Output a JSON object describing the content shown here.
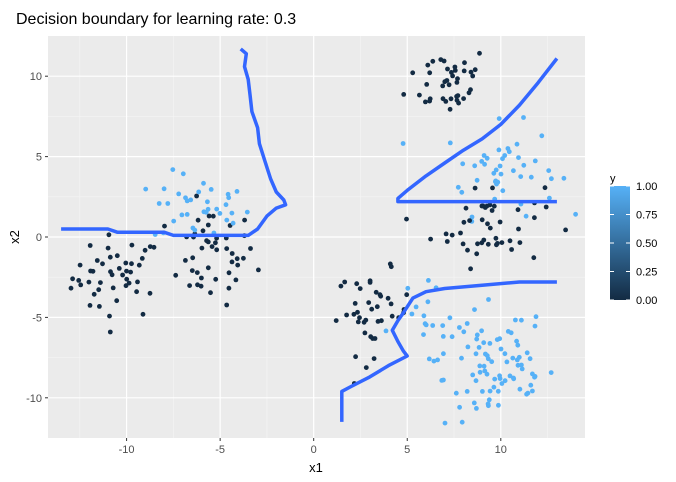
{
  "chart_data": {
    "type": "scatter",
    "title": "Decision boundary for learning rate: 0.3",
    "xlabel": "x1",
    "ylabel": "x2",
    "xlim": [
      -14.2,
      14.5
    ],
    "ylim": [
      -12.5,
      12.5
    ],
    "x_ticks": [
      -10,
      -5,
      0,
      5,
      10
    ],
    "x_tick_labels": [
      "-10",
      "-5",
      "0",
      "5",
      "10"
    ],
    "y_ticks": [
      -10,
      -5,
      0,
      5,
      10
    ],
    "y_tick_labels": [
      "-10",
      "-5",
      "0",
      "5",
      "10"
    ],
    "grid": true,
    "legend": {
      "title": "y",
      "position": "right",
      "min": 0,
      "max": 1,
      "ticks": [
        "0.00",
        "0.25",
        "0.50",
        "0.75",
        "1.00"
      ],
      "low_color": "#132b43",
      "high_color": "#56b1f7"
    },
    "colors": {
      "panel_bg": "#ebebeb",
      "grid_major": "#ffffff",
      "point_low": "#132b43",
      "point_high": "#56b1f7",
      "boundary": "#3366ff"
    },
    "clusters": [
      {
        "label": 0,
        "cx": -10.5,
        "cy": -2.5,
        "sx": 1.2,
        "sy": 1.3,
        "n": 45
      },
      {
        "label": 0,
        "cx": -5.5,
        "cy": -1.2,
        "sx": 1.2,
        "sy": 1.5,
        "n": 45
      },
      {
        "label": 1,
        "cx": -6.0,
        "cy": 1.8,
        "sx": 1.3,
        "sy": 1.1,
        "n": 35
      },
      {
        "label": 0,
        "cx": 7.2,
        "cy": 9.8,
        "sx": 1.1,
        "sy": 1.1,
        "n": 40
      },
      {
        "label": 1,
        "cx": 10.0,
        "cy": 4.2,
        "sx": 1.5,
        "sy": 1.4,
        "n": 45
      },
      {
        "label": 0,
        "cx": 9.3,
        "cy": 0.8,
        "sx": 1.5,
        "sy": 1.3,
        "n": 45
      },
      {
        "label": 0,
        "cx": 3.2,
        "cy": -4.7,
        "sx": 1.0,
        "sy": 1.3,
        "n": 40
      },
      {
        "label": 1,
        "cx": 5.8,
        "cy": -5.5,
        "sx": 1.2,
        "sy": 1.2,
        "n": 20
      },
      {
        "label": 1,
        "cx": 10.0,
        "cy": -8.8,
        "sx": 1.5,
        "sy": 1.5,
        "n": 60
      },
      {
        "label": 1,
        "cx": 9.0,
        "cy": -6.2,
        "sx": 1.8,
        "sy": 0.8,
        "n": 20
      }
    ],
    "boundaries": [
      [
        [
          -13.5,
          0.5
        ],
        [
          -11,
          0.5
        ],
        [
          -10.5,
          0.3
        ],
        [
          -10,
          0.3
        ],
        [
          -8,
          0.3
        ],
        [
          -7.5,
          0.1
        ],
        [
          -3.5,
          0.1
        ],
        [
          -3,
          0.5
        ],
        [
          -2.5,
          1.3
        ],
        [
          -2,
          1.8
        ],
        [
          -1.5,
          2.0
        ],
        [
          -1.6,
          2.3
        ],
        [
          -2.0,
          2.8
        ],
        [
          -2.3,
          3.6
        ],
        [
          -2.6,
          4.7
        ],
        [
          -2.9,
          5.8
        ],
        [
          -3.0,
          6.8
        ],
        [
          -3.3,
          7.8
        ],
        [
          -3.4,
          8.8
        ],
        [
          -3.5,
          9.8
        ],
        [
          -3.7,
          10.6
        ],
        [
          -3.6,
          11.4
        ],
        [
          -3.9,
          11.7
        ]
      ],
      [
        [
          13,
          2.2
        ],
        [
          4.5,
          2.2
        ],
        [
          4.5,
          2.4
        ],
        [
          5,
          2.9
        ],
        [
          6,
          3.8
        ],
        [
          7,
          4.6
        ],
        [
          8,
          5.4
        ],
        [
          9,
          6.1
        ],
        [
          10,
          7.0
        ],
        [
          11,
          8.2
        ],
        [
          12,
          9.6
        ],
        [
          13,
          11.1
        ]
      ],
      [
        [
          1.5,
          -11.5
        ],
        [
          1.5,
          -9.6
        ],
        [
          2,
          -9.3
        ],
        [
          3,
          -8.7
        ],
        [
          4,
          -8.0
        ],
        [
          5,
          -7.4
        ],
        [
          4.8,
          -7.1
        ],
        [
          4.5,
          -6.5
        ],
        [
          4.2,
          -5.8
        ],
        [
          4.5,
          -5.2
        ],
        [
          4.8,
          -4.7
        ],
        [
          5.3,
          -3.8
        ],
        [
          6,
          -3.4
        ],
        [
          7,
          -3.2
        ],
        [
          9,
          -3.0
        ],
        [
          11,
          -2.8
        ],
        [
          13,
          -2.8
        ]
      ]
    ]
  }
}
